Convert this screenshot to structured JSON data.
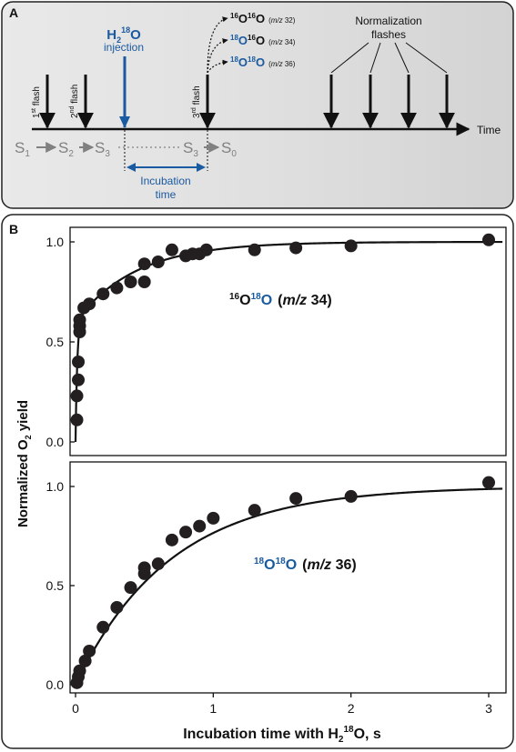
{
  "panelA": {
    "letter": "A",
    "flash1": {
      "num": "1",
      "sup": "st",
      "word": " flash"
    },
    "flash2": {
      "num": "2",
      "sup": "nd",
      "word": " flash"
    },
    "flash3": {
      "num": "3",
      "sup": "rd",
      "word": " flash"
    },
    "injection": {
      "base": "H",
      "sub": "2",
      "sup": "18",
      "tail": "O",
      "label": "injection"
    },
    "products": [
      {
        "a_sup": "16",
        "a": "O",
        "b_sup": "16",
        "b": "O",
        "mz_pre": "(",
        "mz_it": "m/z",
        "mz_post": " 32)"
      },
      {
        "a_sup": "18",
        "a": "O",
        "b_sup": "16",
        "b": "O",
        "mz_pre": "(",
        "mz_it": "m/z",
        "mz_post": " 34)"
      },
      {
        "a_sup": "18",
        "a": "O",
        "b_sup": "18",
        "b": "O",
        "mz_pre": "(",
        "mz_it": "m/z",
        "mz_post": " 36)"
      }
    ],
    "normalization": [
      "Normalization",
      "flashes"
    ],
    "time_label": "Time",
    "states": [
      {
        "s": "S",
        "sub": "1"
      },
      {
        "s": "S",
        "sub": "2"
      },
      {
        "s": "S",
        "sub": "3"
      },
      {
        "s": "S",
        "sub": "3"
      },
      {
        "s": "S",
        "sub": "0"
      }
    ],
    "incubation": [
      "Incubation",
      "time"
    ],
    "colors": {
      "blue": "#1a5aa0",
      "black": "#111111",
      "gray": "#808080",
      "panel_bg": "#e4e4e4"
    }
  },
  "panelB": {
    "letter": "B",
    "ylabel": {
      "pre": "Normalized O",
      "sub": "2",
      "post": " yield"
    },
    "xlabel": {
      "pre": "Incubation time with H",
      "sub": "2",
      "sup": "18",
      "post": "O, s"
    }
  },
  "chart_data": [
    {
      "type": "scatter",
      "label": {
        "a_sup": "16",
        "a": "O",
        "b_sup": "18",
        "b": "O",
        "mz_pre": "(",
        "mz_it": "m/z",
        "mz_post": " 34)"
      },
      "xlim": [
        0,
        3.1
      ],
      "ylim": [
        0,
        1.05
      ],
      "yticks": [
        "0.0",
        "0.5",
        "1.0"
      ],
      "points": [
        [
          0.01,
          0.11
        ],
        [
          0.01,
          0.23
        ],
        [
          0.02,
          0.31
        ],
        [
          0.02,
          0.4
        ],
        [
          0.03,
          0.55
        ],
        [
          0.03,
          0.58
        ],
        [
          0.03,
          0.61
        ],
        [
          0.06,
          0.67
        ],
        [
          0.1,
          0.69
        ],
        [
          0.2,
          0.74
        ],
        [
          0.3,
          0.77
        ],
        [
          0.4,
          0.8
        ],
        [
          0.5,
          0.8
        ],
        [
          0.5,
          0.89
        ],
        [
          0.6,
          0.9
        ],
        [
          0.7,
          0.96
        ],
        [
          0.8,
          0.93
        ],
        [
          0.85,
          0.94
        ],
        [
          0.9,
          0.94
        ],
        [
          0.95,
          0.96
        ],
        [
          1.3,
          0.96
        ],
        [
          1.6,
          0.97
        ],
        [
          2.0,
          0.98
        ],
        [
          3.0,
          1.01
        ]
      ],
      "fit": {
        "model": "biexponential",
        "a_fast": 0.6,
        "k_fast": 80,
        "k_slow": 2.3
      }
    },
    {
      "type": "scatter",
      "label": {
        "a_sup": "18",
        "a": "O",
        "b_sup": "18",
        "b": "O",
        "mz_pre": "(",
        "mz_it": "m/z",
        "mz_post": " 36)"
      },
      "xlim": [
        0,
        3.1
      ],
      "ylim": [
        0,
        1.05
      ],
      "xticks": [
        "0",
        "1",
        "2",
        "3"
      ],
      "yticks": [
        "0.0",
        "0.5",
        "1.0"
      ],
      "points": [
        [
          0.01,
          0.01
        ],
        [
          0.02,
          0.04
        ],
        [
          0.03,
          0.07
        ],
        [
          0.07,
          0.12
        ],
        [
          0.1,
          0.17
        ],
        [
          0.2,
          0.29
        ],
        [
          0.3,
          0.39
        ],
        [
          0.4,
          0.49
        ],
        [
          0.5,
          0.56
        ],
        [
          0.5,
          0.59
        ],
        [
          0.6,
          0.61
        ],
        [
          0.7,
          0.73
        ],
        [
          0.8,
          0.77
        ],
        [
          0.9,
          0.8
        ],
        [
          1.0,
          0.84
        ],
        [
          1.3,
          0.88
        ],
        [
          1.6,
          0.94
        ],
        [
          2.0,
          0.95
        ],
        [
          3.0,
          1.02
        ]
      ],
      "fit": {
        "model": "exponential",
        "k": 1.45
      }
    }
  ]
}
